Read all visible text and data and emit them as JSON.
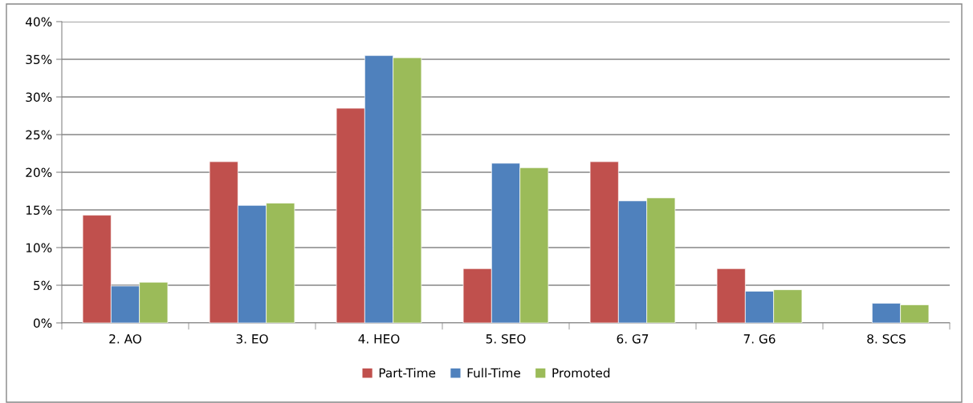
{
  "chart_data": {
    "type": "bar",
    "categories": [
      "2. AO",
      "3. EO",
      "4. HEO",
      "5. SEO",
      "6. G7",
      "7. G6",
      "8. SCS"
    ],
    "series": [
      {
        "name": "Part-Time",
        "color": "#c0504d",
        "values": [
          14.3,
          21.4,
          28.5,
          7.2,
          21.4,
          7.2,
          null
        ]
      },
      {
        "name": "Full-Time",
        "color": "#4f81bd",
        "values": [
          4.9,
          15.6,
          35.5,
          21.2,
          16.2,
          4.2,
          2.6
        ]
      },
      {
        "name": "Promoted",
        "color": "#9bbb59",
        "values": [
          5.4,
          15.9,
          35.2,
          20.6,
          16.6,
          4.4,
          2.4
        ]
      }
    ],
    "ylim": [
      0,
      40
    ],
    "yticks": [
      {
        "value": 0,
        "label": "0%"
      },
      {
        "value": 5,
        "label": "5%"
      },
      {
        "value": 10,
        "label": "10%"
      },
      {
        "value": 15,
        "label": "15%"
      },
      {
        "value": 20,
        "label": "20%"
      },
      {
        "value": 25,
        "label": "25%"
      },
      {
        "value": 30,
        "label": "30%"
      },
      {
        "value": 35,
        "label": "35%"
      },
      {
        "value": 40,
        "label": "40%"
      }
    ],
    "grid": "y",
    "legend": "bottom"
  }
}
